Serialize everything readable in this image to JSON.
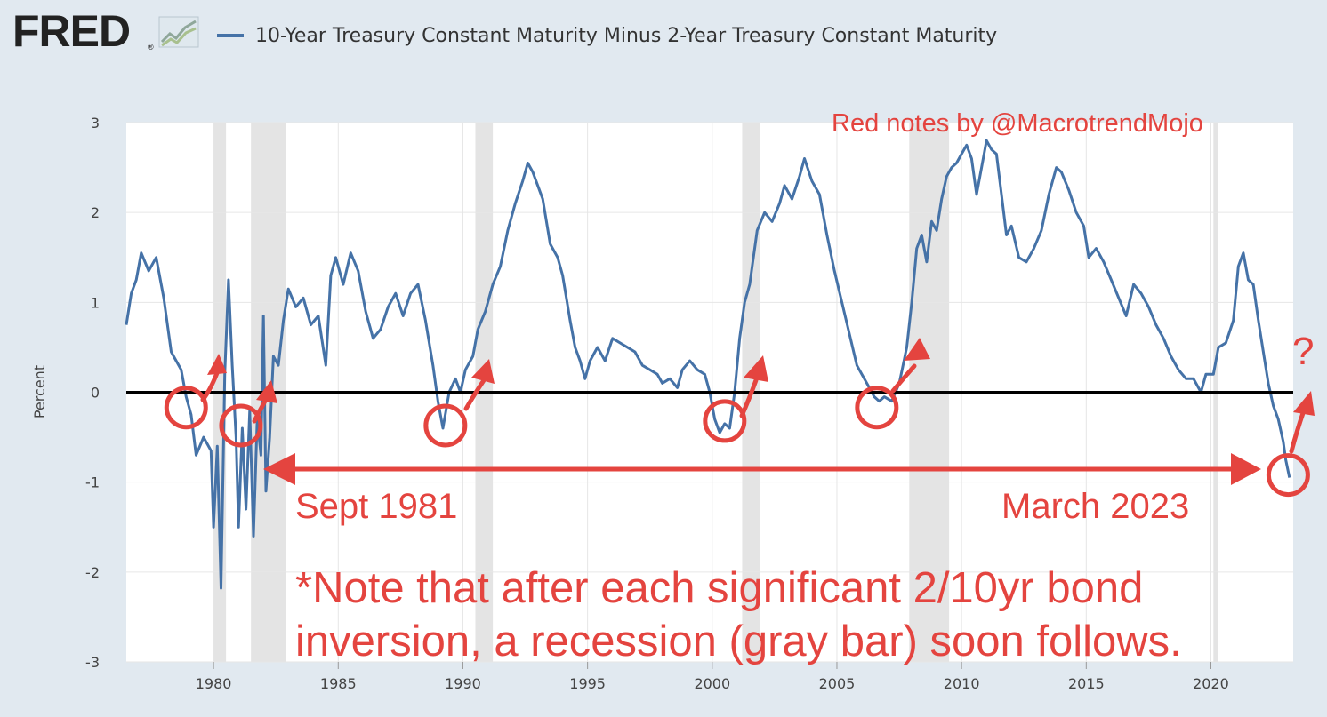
{
  "header": {
    "logo_text": "FRED",
    "logo_reg": "®",
    "legend_label": "10-Year Treasury Constant Maturity Minus 2-Year Treasury Constant Maturity"
  },
  "colors": {
    "series": "#4572a7",
    "annotation": "#e4443f",
    "recession": "#e4e4e4",
    "background": "#e1e9f0"
  },
  "annotations": {
    "credit": "Red notes by @MacrotrendMojo",
    "left_label": "Sept 1981",
    "right_label": "March 2023",
    "note_line1": "*Note that after each significant 2/10yr bond",
    "note_line2": "inversion, a recession (gray bar) soon follows.",
    "question_mark": "?",
    "circled_inversions": [
      1978.9,
      1981.1,
      1989.3,
      2000.5,
      2006.6,
      2023.1
    ],
    "arrow_span": [
      1981.7,
      2023.1
    ]
  },
  "chart_data": {
    "type": "line",
    "ylabel": "Percent",
    "xlim": [
      1976.5,
      2023.3
    ],
    "ylim": [
      -3,
      3
    ],
    "x_ticks": [
      1980,
      1985,
      1990,
      1995,
      2000,
      2005,
      2010,
      2015,
      2020
    ],
    "y_ticks": [
      3,
      2,
      1,
      0,
      -1,
      -2,
      -3
    ],
    "zero_line": true,
    "recessions": [
      [
        1980.0,
        1980.5
      ],
      [
        1981.5,
        1982.9
      ],
      [
        1990.5,
        1991.2
      ],
      [
        2001.2,
        2001.9
      ],
      [
        2007.9,
        2009.5
      ],
      [
        2020.1,
        2020.3
      ]
    ],
    "series": [
      {
        "values": [
          [
            1976.5,
            0.75
          ],
          [
            1976.7,
            1.1
          ],
          [
            1976.9,
            1.25
          ],
          [
            1977.1,
            1.55
          ],
          [
            1977.4,
            1.35
          ],
          [
            1977.7,
            1.5
          ],
          [
            1978.0,
            1.05
          ],
          [
            1978.3,
            0.45
          ],
          [
            1978.5,
            0.35
          ],
          [
            1978.7,
            0.25
          ],
          [
            1978.9,
            -0.05
          ],
          [
            1979.1,
            -0.25
          ],
          [
            1979.3,
            -0.7
          ],
          [
            1979.6,
            -0.5
          ],
          [
            1979.9,
            -0.65
          ],
          [
            1980.0,
            -1.5
          ],
          [
            1980.15,
            -0.6
          ],
          [
            1980.3,
            -2.18
          ],
          [
            1980.45,
            0.2
          ],
          [
            1980.6,
            1.25
          ],
          [
            1980.75,
            0.3
          ],
          [
            1980.9,
            -0.5
          ],
          [
            1981.0,
            -1.5
          ],
          [
            1981.15,
            -0.4
          ],
          [
            1981.3,
            -1.3
          ],
          [
            1981.45,
            -0.2
          ],
          [
            1981.6,
            -1.6
          ],
          [
            1981.75,
            -0.3
          ],
          [
            1981.9,
            -0.7
          ],
          [
            1982.0,
            0.85
          ],
          [
            1982.1,
            -1.1
          ],
          [
            1982.25,
            -0.5
          ],
          [
            1982.4,
            0.4
          ],
          [
            1982.6,
            0.3
          ],
          [
            1982.8,
            0.8
          ],
          [
            1983.0,
            1.15
          ],
          [
            1983.3,
            0.95
          ],
          [
            1983.6,
            1.05
          ],
          [
            1983.9,
            0.75
          ],
          [
            1984.2,
            0.85
          ],
          [
            1984.5,
            0.3
          ],
          [
            1984.7,
            1.3
          ],
          [
            1984.9,
            1.5
          ],
          [
            1985.2,
            1.2
          ],
          [
            1985.5,
            1.55
          ],
          [
            1985.8,
            1.35
          ],
          [
            1986.1,
            0.9
          ],
          [
            1986.4,
            0.6
          ],
          [
            1986.7,
            0.7
          ],
          [
            1987.0,
            0.95
          ],
          [
            1987.3,
            1.1
          ],
          [
            1987.6,
            0.85
          ],
          [
            1987.9,
            1.1
          ],
          [
            1988.2,
            1.2
          ],
          [
            1988.5,
            0.8
          ],
          [
            1988.8,
            0.3
          ],
          [
            1989.0,
            -0.1
          ],
          [
            1989.2,
            -0.4
          ],
          [
            1989.45,
            0.0
          ],
          [
            1989.7,
            0.15
          ],
          [
            1989.9,
            0.0
          ],
          [
            1990.1,
            0.25
          ],
          [
            1990.4,
            0.4
          ],
          [
            1990.6,
            0.7
          ],
          [
            1990.9,
            0.9
          ],
          [
            1991.2,
            1.2
          ],
          [
            1991.5,
            1.4
          ],
          [
            1991.8,
            1.8
          ],
          [
            1992.1,
            2.1
          ],
          [
            1992.4,
            2.35
          ],
          [
            1992.6,
            2.55
          ],
          [
            1992.8,
            2.45
          ],
          [
            1993.0,
            2.3
          ],
          [
            1993.2,
            2.15
          ],
          [
            1993.5,
            1.65
          ],
          [
            1993.8,
            1.5
          ],
          [
            1994.0,
            1.3
          ],
          [
            1994.3,
            0.8
          ],
          [
            1994.5,
            0.5
          ],
          [
            1994.7,
            0.35
          ],
          [
            1994.9,
            0.15
          ],
          [
            1995.1,
            0.35
          ],
          [
            1995.4,
            0.5
          ],
          [
            1995.7,
            0.35
          ],
          [
            1996.0,
            0.6
          ],
          [
            1996.3,
            0.55
          ],
          [
            1996.6,
            0.5
          ],
          [
            1996.9,
            0.45
          ],
          [
            1997.2,
            0.3
          ],
          [
            1997.5,
            0.25
          ],
          [
            1997.8,
            0.2
          ],
          [
            1998.0,
            0.1
          ],
          [
            1998.3,
            0.15
          ],
          [
            1998.6,
            0.05
          ],
          [
            1998.8,
            0.25
          ],
          [
            1999.1,
            0.35
          ],
          [
            1999.4,
            0.25
          ],
          [
            1999.7,
            0.2
          ],
          [
            1999.9,
            0.0
          ],
          [
            2000.1,
            -0.3
          ],
          [
            2000.3,
            -0.45
          ],
          [
            2000.5,
            -0.35
          ],
          [
            2000.7,
            -0.4
          ],
          [
            2000.9,
            0.0
          ],
          [
            2001.1,
            0.6
          ],
          [
            2001.3,
            1.0
          ],
          [
            2001.5,
            1.2
          ],
          [
            2001.8,
            1.8
          ],
          [
            2002.1,
            2.0
          ],
          [
            2002.4,
            1.9
          ],
          [
            2002.7,
            2.1
          ],
          [
            2002.9,
            2.3
          ],
          [
            2003.2,
            2.15
          ],
          [
            2003.5,
            2.4
          ],
          [
            2003.7,
            2.6
          ],
          [
            2004.0,
            2.35
          ],
          [
            2004.3,
            2.2
          ],
          [
            2004.6,
            1.75
          ],
          [
            2004.9,
            1.35
          ],
          [
            2005.2,
            1.0
          ],
          [
            2005.5,
            0.65
          ],
          [
            2005.8,
            0.3
          ],
          [
            2006.0,
            0.2
          ],
          [
            2006.3,
            0.05
          ],
          [
            2006.5,
            -0.05
          ],
          [
            2006.7,
            -0.1
          ],
          [
            2006.9,
            -0.05
          ],
          [
            2007.2,
            -0.1
          ],
          [
            2007.5,
            0.1
          ],
          [
            2007.8,
            0.5
          ],
          [
            2008.0,
            1.0
          ],
          [
            2008.2,
            1.6
          ],
          [
            2008.4,
            1.75
          ],
          [
            2008.6,
            1.45
          ],
          [
            2008.8,
            1.9
          ],
          [
            2009.0,
            1.8
          ],
          [
            2009.2,
            2.15
          ],
          [
            2009.4,
            2.4
          ],
          [
            2009.6,
            2.5
          ],
          [
            2009.8,
            2.55
          ],
          [
            2010.0,
            2.65
          ],
          [
            2010.2,
            2.75
          ],
          [
            2010.4,
            2.6
          ],
          [
            2010.6,
            2.2
          ],
          [
            2010.8,
            2.5
          ],
          [
            2011.0,
            2.8
          ],
          [
            2011.2,
            2.7
          ],
          [
            2011.4,
            2.65
          ],
          [
            2011.6,
            2.2
          ],
          [
            2011.8,
            1.75
          ],
          [
            2012.0,
            1.85
          ],
          [
            2012.3,
            1.5
          ],
          [
            2012.6,
            1.45
          ],
          [
            2012.9,
            1.6
          ],
          [
            2013.2,
            1.8
          ],
          [
            2013.5,
            2.2
          ],
          [
            2013.8,
            2.5
          ],
          [
            2014.0,
            2.45
          ],
          [
            2014.3,
            2.25
          ],
          [
            2014.6,
            2.0
          ],
          [
            2014.9,
            1.85
          ],
          [
            2015.1,
            1.5
          ],
          [
            2015.4,
            1.6
          ],
          [
            2015.7,
            1.45
          ],
          [
            2016.0,
            1.25
          ],
          [
            2016.3,
            1.05
          ],
          [
            2016.6,
            0.85
          ],
          [
            2016.9,
            1.2
          ],
          [
            2017.2,
            1.1
          ],
          [
            2017.5,
            0.95
          ],
          [
            2017.8,
            0.75
          ],
          [
            2018.1,
            0.6
          ],
          [
            2018.4,
            0.4
          ],
          [
            2018.7,
            0.25
          ],
          [
            2019.0,
            0.15
          ],
          [
            2019.3,
            0.15
          ],
          [
            2019.6,
            0.0
          ],
          [
            2019.8,
            0.2
          ],
          [
            2020.1,
            0.2
          ],
          [
            2020.3,
            0.5
          ],
          [
            2020.6,
            0.55
          ],
          [
            2020.9,
            0.8
          ],
          [
            2021.1,
            1.4
          ],
          [
            2021.3,
            1.55
          ],
          [
            2021.5,
            1.25
          ],
          [
            2021.7,
            1.2
          ],
          [
            2021.9,
            0.8
          ],
          [
            2022.1,
            0.45
          ],
          [
            2022.3,
            0.1
          ],
          [
            2022.5,
            -0.15
          ],
          [
            2022.7,
            -0.3
          ],
          [
            2022.9,
            -0.55
          ],
          [
            2023.0,
            -0.75
          ],
          [
            2023.15,
            -0.95
          ]
        ]
      }
    ]
  }
}
